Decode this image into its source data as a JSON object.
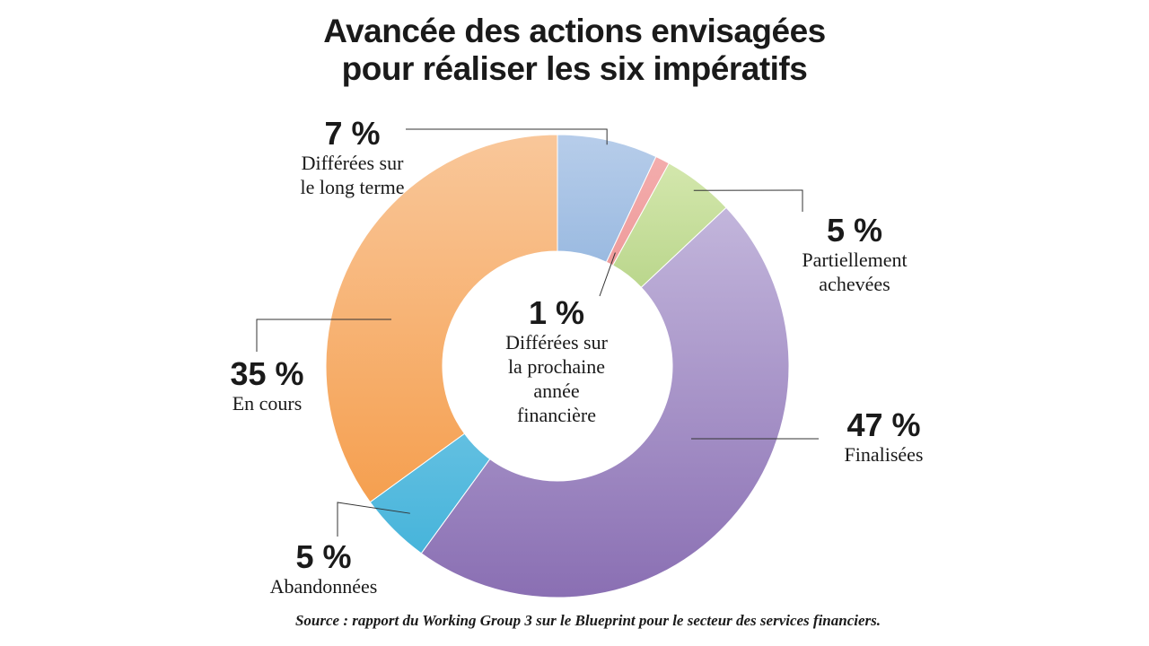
{
  "title_line1": "Avancée des actions envisagées",
  "title_line2": "pour réaliser les six impératifs",
  "source": "Source : rapport du Working Group 3 sur le Blueprint pour le secteur des services financiers.",
  "chart_data": {
    "type": "pie",
    "title": "Avancée des actions envisagées pour réaliser les six impératifs",
    "donut": true,
    "slices": [
      {
        "key": "long_terme",
        "percent_label": "7 %",
        "label": "Différées sur\nle long terme",
        "value": 7,
        "color_light": "#b7cdea",
        "color_dark": "#4f88c8"
      },
      {
        "key": "prochaine",
        "percent_label": "1 %",
        "label": "Différées sur\nla prochaine\nannée\nfinancière",
        "value": 1,
        "color_light": "#f4b0b0",
        "color_dark": "#e06666"
      },
      {
        "key": "partiellement",
        "percent_label": "5 %",
        "label": "Partiellement\nachevées",
        "value": 5,
        "color_light": "#d9ebb4",
        "color_dark": "#7cac3c"
      },
      {
        "key": "finalisees",
        "percent_label": "47 %",
        "label": "Finalisées",
        "value": 47,
        "color_light": "#cdc3e3",
        "color_dark": "#8a6fb3"
      },
      {
        "key": "abandonnees",
        "percent_label": "5 %",
        "label": "Abandonnées",
        "value": 5,
        "color_light": "#a9dcf2",
        "color_dark": "#3cb0d8"
      },
      {
        "key": "en_cours",
        "percent_label": "35 %",
        "label": "En cours",
        "value": 35,
        "color_light": "#f9c79a",
        "color_dark": "#f4953c"
      }
    ]
  }
}
